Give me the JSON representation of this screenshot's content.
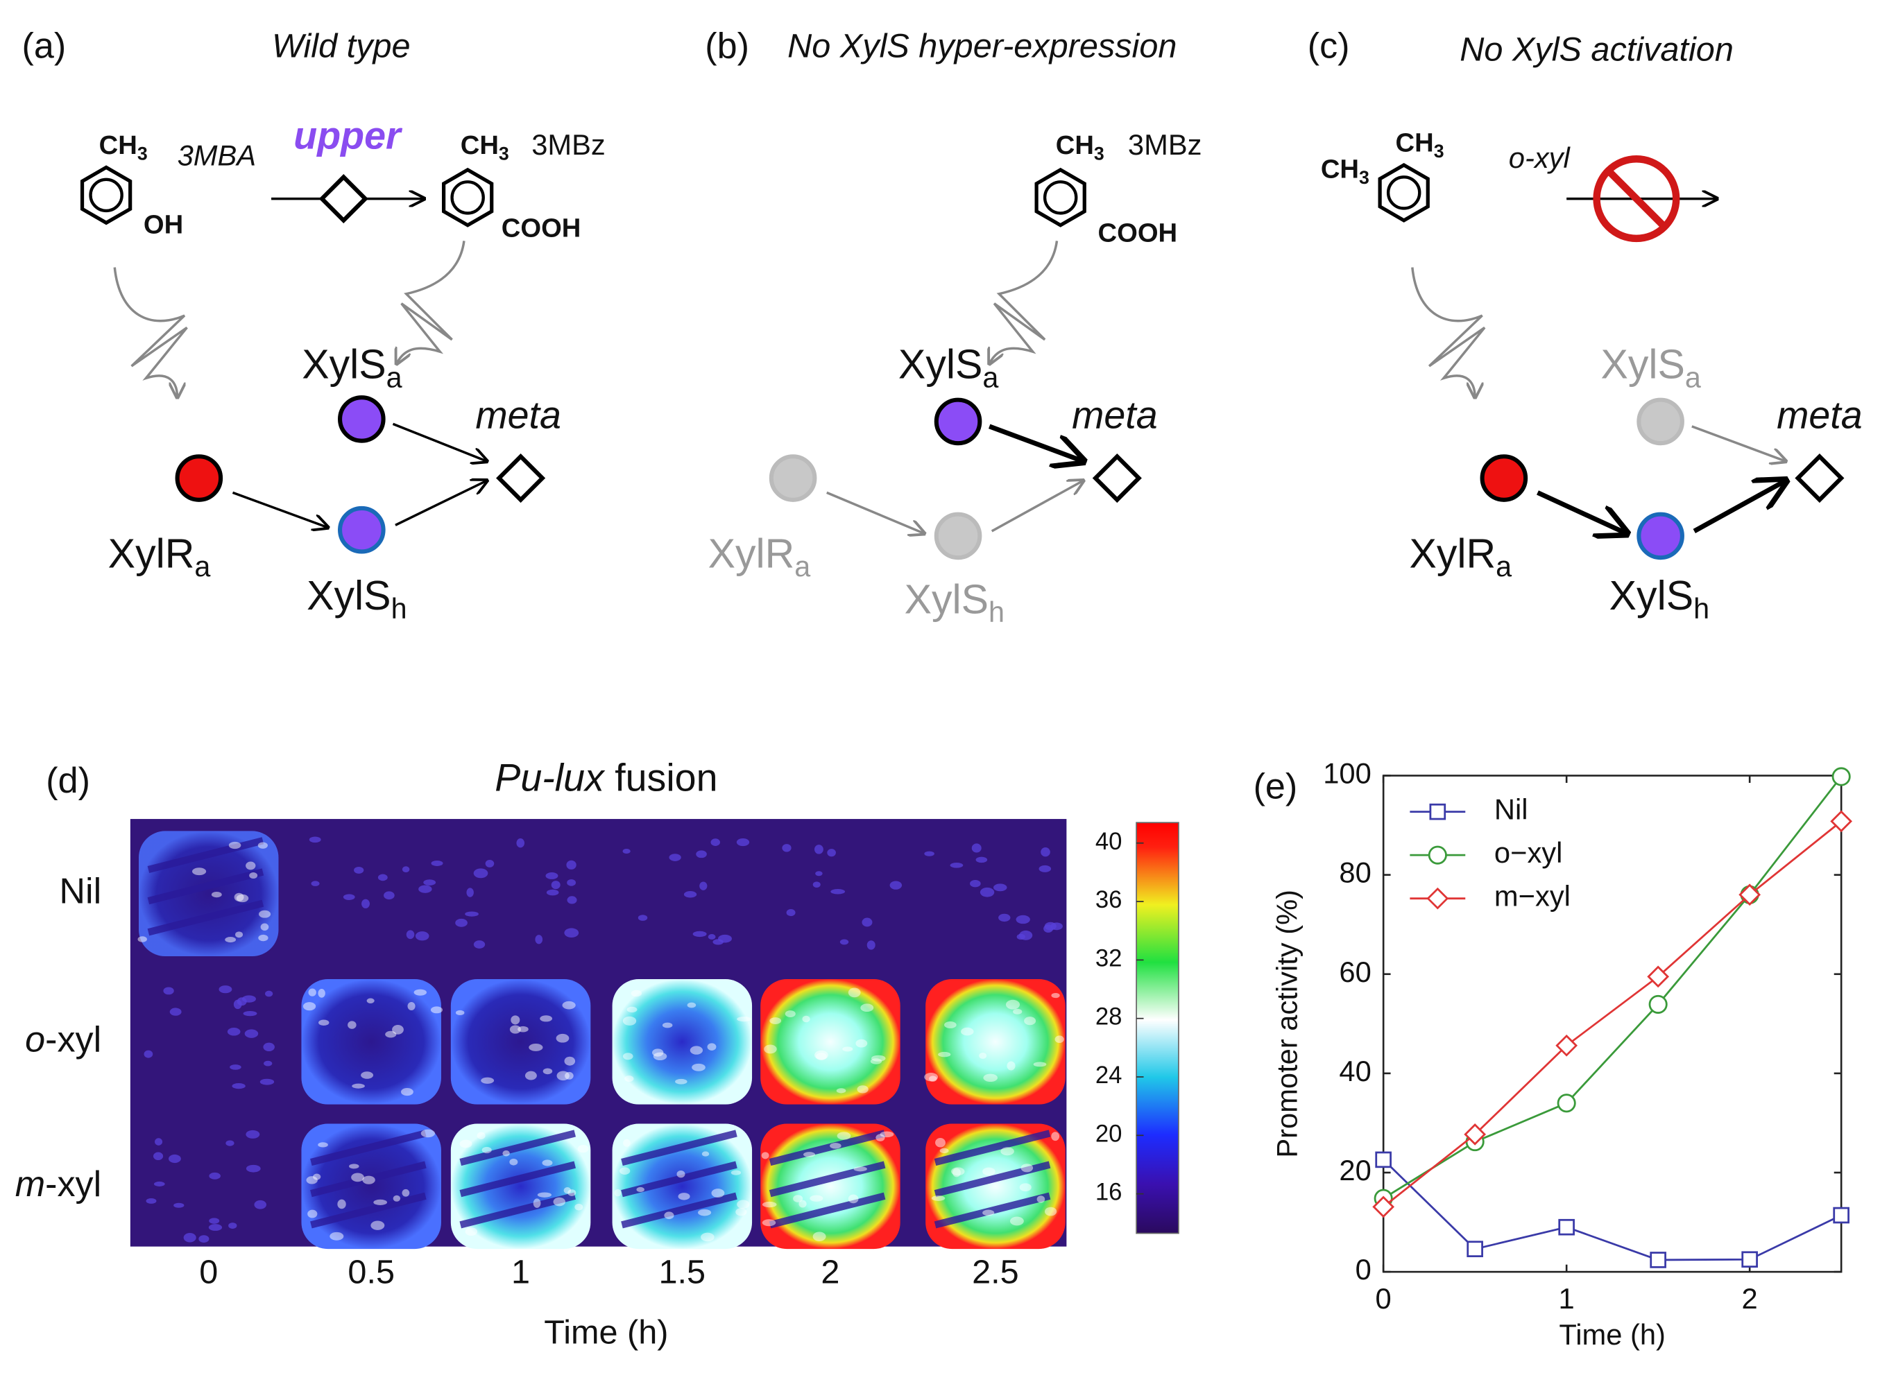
{
  "diagrams": [
    {
      "label": "(a)",
      "title": "Wild type",
      "substrate": {
        "groups": [
          {
            "main": "CH",
            "sub": "3"
          }
        ],
        "tail": "OH",
        "name": "3MBA"
      },
      "pathway": "upper",
      "product": {
        "groups": [
          {
            "main": "CH",
            "sub": "3"
          }
        ],
        "tail": "COOH",
        "name": "3MBz"
      },
      "nodes": {
        "xyls_a": {
          "main": "XylS",
          "sub": "a"
        },
        "xylr_a": {
          "main": "XylR",
          "sub": "a"
        },
        "xyls_h": {
          "main": "XylS",
          "sub": "h"
        },
        "target": "meta"
      }
    },
    {
      "label": "(b)",
      "title": "No XylS hyper-expression",
      "product": {
        "groups": [
          {
            "main": "CH",
            "sub": "3"
          }
        ],
        "tail": "COOH",
        "name": "3MBz"
      },
      "nodes": {
        "xyls_a": {
          "main": "XylS",
          "sub": "a"
        },
        "xylr_a": {
          "main": "XylR",
          "sub": "a"
        },
        "xyls_h": {
          "main": "XylS",
          "sub": "h"
        },
        "target": "meta"
      }
    },
    {
      "label": "(c)",
      "title": "No XylS activation",
      "substrate": {
        "groups": [
          {
            "main": "CH",
            "sub": "3"
          },
          {
            "main": "CH",
            "sub": "3"
          }
        ],
        "name": "o-xyl"
      },
      "nodes": {
        "xyls_a": {
          "main": "XylS",
          "sub": "a"
        },
        "xylr_a": {
          "main": "XylR",
          "sub": "a"
        },
        "xyls_h": {
          "main": "XylS",
          "sub": "h"
        },
        "target": "meta"
      }
    }
  ],
  "heatmap": {
    "label": "(d)",
    "title": {
      "italic": "Pu-lux",
      "text": " fusion"
    },
    "rows": [
      {
        "text": "Nil"
      },
      {
        "italic": "o",
        "text": "-xyl"
      },
      {
        "italic": "m",
        "text": "-xyl"
      }
    ],
    "columns": [
      "0",
      "0.5",
      "1",
      "1.5",
      "2",
      "2.5"
    ],
    "xlabel": "Time (h)",
    "colorbar_lim": [
      13.3,
      41.4
    ],
    "colorbar_ticks": [
      16,
      20,
      24,
      28,
      32,
      36,
      40
    ]
  },
  "chart_data": {
    "type": "line",
    "label": "(e)",
    "xlabel": "Time (h)",
    "ylabel": "Promoter activity (%)",
    "x": [
      0,
      0.5,
      1,
      1.5,
      2,
      2.5
    ],
    "xlim": [
      0,
      2.5
    ],
    "ylim": [
      0,
      100
    ],
    "xticks": [
      0,
      1,
      2
    ],
    "yticks": [
      0,
      20,
      40,
      60,
      80,
      100
    ],
    "legend": "upper left",
    "series": [
      {
        "name": "Nil",
        "color": "#3a3aa8",
        "marker": "square",
        "values": [
          22.6,
          4.6,
          9,
          2.4,
          2.5,
          11.4
        ]
      },
      {
        "name": "o−xyl",
        "color": "#3a9a3a",
        "marker": "circle",
        "values": [
          14.8,
          26.2,
          34,
          53.9,
          76,
          99.8
        ]
      },
      {
        "name": "m−xyl",
        "color": "#e03535",
        "marker": "diamond",
        "values": [
          13.1,
          27.7,
          45.6,
          59.5,
          76,
          90.8
        ]
      }
    ]
  }
}
